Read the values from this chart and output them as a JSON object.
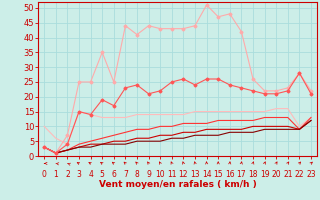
{
  "background_color": "#cceee8",
  "grid_color": "#aadddd",
  "xlabel": "Vent moyen/en rafales ( km/h )",
  "xlabel_color": "#cc0000",
  "xlabel_fontsize": 6.5,
  "tick_color": "#cc0000",
  "ytick_fontsize": 6,
  "xtick_fontsize": 5.5,
  "ylim": [
    0,
    52
  ],
  "xlim": [
    -0.5,
    23.5
  ],
  "yticks": [
    0,
    5,
    10,
    15,
    20,
    25,
    30,
    35,
    40,
    45,
    50
  ],
  "xticks": [
    0,
    1,
    2,
    3,
    4,
    5,
    6,
    7,
    8,
    9,
    10,
    11,
    12,
    13,
    14,
    15,
    16,
    17,
    18,
    19,
    20,
    21,
    22,
    23
  ],
  "series": [
    {
      "x": [
        0,
        1,
        2,
        3,
        4,
        5,
        6,
        7,
        8,
        9,
        10,
        11,
        12,
        13,
        14,
        15,
        16,
        17,
        18,
        19,
        20,
        21,
        22,
        23
      ],
      "y": [
        3,
        1,
        7,
        25,
        25,
        35,
        25,
        44,
        41,
        44,
        43,
        43,
        43,
        44,
        51,
        47,
        48,
        42,
        26,
        22,
        22,
        23,
        28,
        22
      ],
      "color": "#ffaaaa",
      "marker": "D",
      "markersize": 1.5,
      "linewidth": 0.8,
      "zorder": 3
    },
    {
      "x": [
        0,
        1,
        2,
        3,
        4,
        5,
        6,
        7,
        8,
        9,
        10,
        11,
        12,
        13,
        14,
        15,
        16,
        17,
        18,
        19,
        20,
        21,
        22,
        23
      ],
      "y": [
        3,
        1,
        4,
        15,
        14,
        19,
        17,
        23,
        24,
        21,
        22,
        25,
        26,
        24,
        26,
        26,
        24,
        23,
        22,
        21,
        21,
        22,
        28,
        21
      ],
      "color": "#ff5555",
      "marker": "D",
      "markersize": 1.5,
      "linewidth": 0.8,
      "zorder": 4
    },
    {
      "x": [
        0,
        1,
        2,
        3,
        4,
        5,
        6,
        7,
        8,
        9,
        10,
        11,
        12,
        13,
        14,
        15,
        16,
        17,
        18,
        19,
        20,
        21,
        22,
        23
      ],
      "y": [
        10,
        6,
        4,
        15,
        14,
        13,
        13,
        13,
        14,
        14,
        14,
        14,
        14,
        15,
        15,
        15,
        15,
        15,
        15,
        15,
        16,
        16,
        10,
        13
      ],
      "color": "#ffbbbb",
      "marker": null,
      "linewidth": 0.8,
      "zorder": 2
    },
    {
      "x": [
        0,
        1,
        2,
        3,
        4,
        5,
        6,
        7,
        8,
        9,
        10,
        11,
        12,
        13,
        14,
        15,
        16,
        17,
        18,
        19,
        20,
        21,
        22,
        23
      ],
      "y": [
        3,
        1,
        2,
        4,
        5,
        6,
        7,
        8,
        9,
        9,
        10,
        10,
        11,
        11,
        11,
        12,
        12,
        12,
        12,
        13,
        13,
        13,
        9,
        13
      ],
      "color": "#ff3333",
      "marker": null,
      "linewidth": 0.8,
      "zorder": 2
    },
    {
      "x": [
        0,
        1,
        2,
        3,
        4,
        5,
        6,
        7,
        8,
        9,
        10,
        11,
        12,
        13,
        14,
        15,
        16,
        17,
        18,
        19,
        20,
        21,
        22,
        23
      ],
      "y": [
        3,
        1,
        2,
        3,
        4,
        4,
        5,
        5,
        6,
        6,
        7,
        7,
        8,
        8,
        9,
        9,
        9,
        9,
        10,
        10,
        10,
        10,
        9,
        12
      ],
      "color": "#cc0000",
      "marker": null,
      "linewidth": 0.8,
      "zorder": 2
    },
    {
      "x": [
        0,
        1,
        2,
        3,
        4,
        5,
        6,
        7,
        8,
        9,
        10,
        11,
        12,
        13,
        14,
        15,
        16,
        17,
        18,
        19,
        20,
        21,
        22,
        23
      ],
      "y": [
        3,
        1,
        2,
        3,
        3,
        4,
        4,
        4,
        5,
        5,
        5,
        6,
        6,
        7,
        7,
        7,
        8,
        8,
        8,
        9,
        9,
        9,
        9,
        12
      ],
      "color": "#880000",
      "marker": null,
      "linewidth": 0.8,
      "zorder": 2
    }
  ],
  "spine_color": "#cc0000",
  "arrow_color": "#cc0000",
  "arrow_angles": [
    180,
    170,
    160,
    150,
    145,
    140,
    135,
    130,
    125,
    120,
    115,
    110,
    105,
    100,
    95,
    90,
    85,
    80,
    75,
    70,
    65,
    60,
    55,
    50
  ]
}
